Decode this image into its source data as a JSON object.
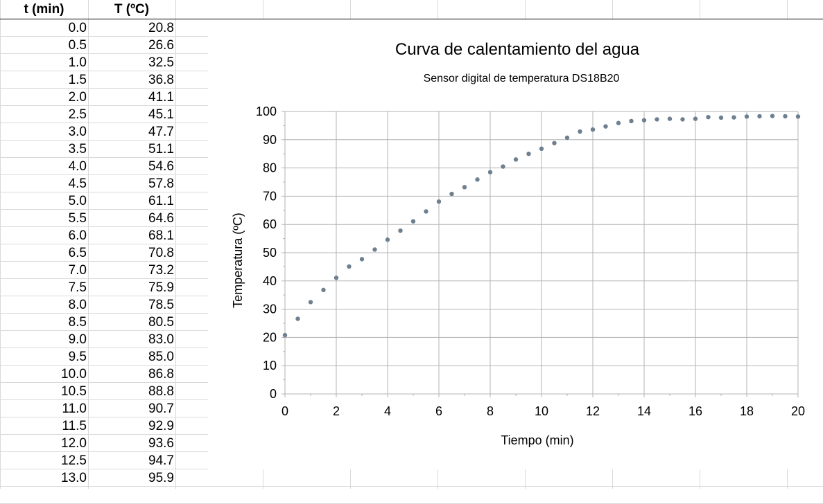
{
  "sheet": {
    "headers": [
      "t (min)",
      "T (ºC)"
    ],
    "rows": [
      [
        "0.0",
        "20.8"
      ],
      [
        "0.5",
        "26.6"
      ],
      [
        "1.0",
        "32.5"
      ],
      [
        "1.5",
        "36.8"
      ],
      [
        "2.0",
        "41.1"
      ],
      [
        "2.5",
        "45.1"
      ],
      [
        "3.0",
        "47.7"
      ],
      [
        "3.5",
        "51.1"
      ],
      [
        "4.0",
        "54.6"
      ],
      [
        "4.5",
        "57.8"
      ],
      [
        "5.0",
        "61.1"
      ],
      [
        "5.5",
        "64.6"
      ],
      [
        "6.0",
        "68.1"
      ],
      [
        "6.5",
        "70.8"
      ],
      [
        "7.0",
        "73.2"
      ],
      [
        "7.5",
        "75.9"
      ],
      [
        "8.0",
        "78.5"
      ],
      [
        "8.5",
        "80.5"
      ],
      [
        "9.0",
        "83.0"
      ],
      [
        "9.5",
        "85.0"
      ],
      [
        "10.0",
        "86.8"
      ],
      [
        "10.5",
        "88.8"
      ],
      [
        "11.0",
        "90.7"
      ],
      [
        "11.5",
        "92.9"
      ],
      [
        "12.0",
        "93.6"
      ],
      [
        "12.5",
        "94.7"
      ],
      [
        "13.0",
        "95.9"
      ]
    ]
  },
  "chart_data": {
    "type": "scatter",
    "title": "Curva de calentamiento del agua",
    "subtitle": "Sensor digital de temperatura DS18B20",
    "xlabel": "Tiempo (min)",
    "ylabel": "Temperatura (ºC)",
    "xlim": [
      0,
      20
    ],
    "ylim": [
      0,
      100
    ],
    "xticks": [
      0,
      2,
      4,
      6,
      8,
      10,
      12,
      14,
      16,
      18,
      20
    ],
    "yticks": [
      0,
      10,
      20,
      30,
      40,
      50,
      60,
      70,
      80,
      90,
      100
    ],
    "grid": true,
    "marker_color": "#6e7f8f",
    "x": [
      0,
      0.5,
      1,
      1.5,
      2,
      2.5,
      3,
      3.5,
      4,
      4.5,
      5,
      5.5,
      6,
      6.5,
      7,
      7.5,
      8,
      8.5,
      9,
      9.5,
      10,
      10.5,
      11,
      11.5,
      12,
      12.5,
      13,
      13.5,
      14,
      14.5,
      15,
      15.5,
      16,
      16.5,
      17,
      17.5,
      18,
      18.5,
      19,
      19.5,
      20
    ],
    "y": [
      20.8,
      26.6,
      32.5,
      36.8,
      41.1,
      45.1,
      47.7,
      51.1,
      54.6,
      57.8,
      61.1,
      64.6,
      68.1,
      70.8,
      73.2,
      75.9,
      78.5,
      80.5,
      83.0,
      85.0,
      86.8,
      88.8,
      90.7,
      92.9,
      93.6,
      94.7,
      95.9,
      96.6,
      96.9,
      97.2,
      97.4,
      97.2,
      97.4,
      98.0,
      97.8,
      97.9,
      98.2,
      98.3,
      98.4,
      98.3,
      98.2
    ]
  }
}
